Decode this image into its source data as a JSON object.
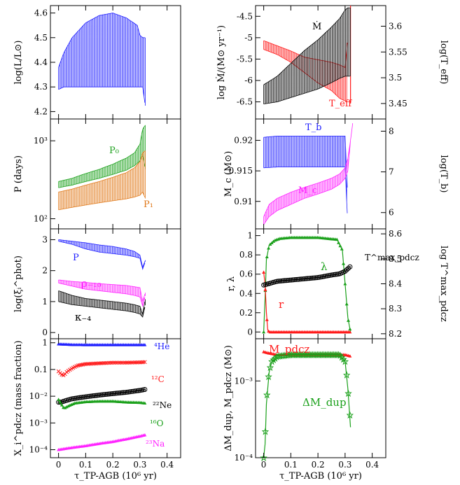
{
  "figure": {
    "shared_xlabel": "τ_TP-AGB (10⁶ yr)",
    "x_ticks": [
      "0",
      "0.1",
      "0.2",
      "0.3",
      "0.4"
    ],
    "colors": {
      "blue": "#2020ff",
      "red": "#ff1a1a",
      "green": "#1aa01a",
      "magenta": "#ff22ff",
      "orange": "#e07818",
      "black": "#000000"
    }
  },
  "chart_data": [
    {
      "id": "luminosity",
      "type": "line",
      "ylabel": "log(L/L⊙)",
      "ylim": [
        4.17,
        4.63
      ],
      "yticks": [
        "4.2",
        "4.3",
        "4.4",
        "4.5",
        "4.6"
      ],
      "series": [
        {
          "values": {
            "x": [
              0.0,
              0.02,
              0.05,
              0.1,
              0.15,
              0.2,
              0.25,
              0.29,
              0.3,
              0.31,
              0.32
            ],
            "y_top": [
              4.38,
              4.44,
              4.5,
              4.56,
              4.59,
              4.6,
              4.58,
              4.55,
              4.51,
              4.5,
              4.5
            ],
            "y_bottom": [
              4.29,
              4.3,
              4.3,
              4.3,
              4.3,
              4.3,
              4.3,
              4.3,
              4.3,
              4.3,
              4.22
            ]
          }
        }
      ]
    },
    {
      "id": "mass-loss",
      "type": "line",
      "ylabel": "log Ṁ/(M⊙ yr⁻¹)",
      "y2label": "log(T_eff)",
      "ylim": [
        -6.9,
        -4.25
      ],
      "y2lim": [
        3.42,
        3.64
      ],
      "yticks": [
        "-6.5",
        "-6",
        "-5.5",
        "-5",
        "-4.5"
      ],
      "y2ticks": [
        "3.45",
        "3.5",
        "3.55",
        "3.6"
      ],
      "annotations": [
        "Ṁ",
        "T_eff"
      ],
      "series": [
        {
          "name": "Ṁ",
          "values": {
            "x": [
              0.0,
              0.05,
              0.1,
              0.15,
              0.2,
              0.25,
              0.28,
              0.3,
              0.31,
              0.32
            ],
            "y_top": [
              -6.1,
              -5.9,
              -5.6,
              -5.3,
              -5.05,
              -4.75,
              -4.55,
              -4.35,
              -4.3,
              -4.3
            ],
            "y_bottom": [
              -6.55,
              -6.5,
              -6.4,
              -6.3,
              -6.2,
              -6.05,
              -5.95,
              -5.9,
              -5.9,
              -5.9
            ]
          }
        },
        {
          "name": "T_eff",
          "values": {
            "x": [
              0.0,
              0.05,
              0.1,
              0.15,
              0.2,
              0.25,
              0.28,
              0.3,
              0.32
            ],
            "y_top": [
              3.572,
              3.562,
              3.552,
              3.54,
              3.535,
              3.53,
              3.525,
              3.52,
              3.64
            ],
            "y_bottom": [
              3.555,
              3.545,
              3.53,
              3.51,
              3.49,
              3.475,
              3.46,
              3.455,
              3.45
            ]
          }
        }
      ]
    },
    {
      "id": "period",
      "type": "line",
      "ylabel": "P (days)",
      "ylim_log10": [
        1.87,
        3.28
      ],
      "yticks": [
        "10²",
        "10³"
      ],
      "series": [
        {
          "name": "P₀",
          "values": {
            "x": [
              0.0,
              0.05,
              0.1,
              0.15,
              0.2,
              0.25,
              0.28,
              0.3,
              0.31,
              0.32
            ],
            "y_top": [
              300,
              330,
              380,
              430,
              500,
              600,
              700,
              900,
              1400,
              1600
            ],
            "y_bottom": [
              250,
              270,
              300,
              330,
              370,
              420,
              480,
              550,
              650,
              420
            ]
          }
        },
        {
          "name": "P₁",
          "values": {
            "x": [
              0.0,
              0.05,
              0.1,
              0.15,
              0.2,
              0.25,
              0.28,
              0.3,
              0.31,
              0.32
            ],
            "y_top": [
              220,
              240,
              270,
              300,
              340,
              390,
              450,
              540,
              700,
              750
            ],
            "y_bottom": [
              130,
              140,
              150,
              160,
              170,
              180,
              190,
              200,
              220,
              180
            ]
          }
        }
      ]
    },
    {
      "id": "core-mass",
      "type": "line",
      "ylabel": "M_c (M⊙)",
      "y2label": "log(T_b)",
      "ylim": [
        0.9055,
        0.9235
      ],
      "y2lim": [
        5.6,
        8.3
      ],
      "yticks": [
        "0.91",
        "0.915",
        "0.92"
      ],
      "y2ticks": [
        "6",
        "7",
        "8"
      ],
      "series": [
        {
          "name": "T_b",
          "values": {
            "x": [
              0.0,
              0.05,
              0.1,
              0.15,
              0.2,
              0.25,
              0.28,
              0.3,
              0.31,
              0.32
            ],
            "y_top": [
              7.85,
              7.88,
              7.88,
              7.88,
              7.88,
              7.88,
              7.88,
              7.88,
              6.3,
              5.6
            ],
            "y_bottom": [
              7.1,
              7.12,
              7.12,
              7.12,
              7.12,
              7.12,
              7.12,
              7.12,
              5.7,
              5.6
            ]
          }
        },
        {
          "name": "M_c",
          "values": {
            "x": [
              0.0,
              0.02,
              0.05,
              0.1,
              0.15,
              0.2,
              0.25,
              0.28,
              0.3,
              0.31,
              0.32,
              0.33
            ],
            "y_top": [
              0.9075,
              0.9095,
              0.9105,
              0.9115,
              0.9123,
              0.913,
              0.9138,
              0.9145,
              0.9155,
              0.917,
              0.92,
              0.9235
            ],
            "y_bottom": [
              0.9062,
              0.9075,
              0.9085,
              0.9095,
              0.9105,
              0.9112,
              0.912,
              0.9128,
              0.9138,
              0.915,
              0.92,
              0.9235
            ]
          }
        }
      ]
    },
    {
      "id": "opacity-derivatives",
      "type": "line",
      "ylabel": "log(ξᵢ^phot)",
      "ylim": [
        -0.2,
        3.35
      ],
      "yticks": [
        "0",
        "1",
        "2",
        "3"
      ],
      "series": [
        {
          "name": "P",
          "values": {
            "x": [
              0.0,
              0.05,
              0.1,
              0.15,
              0.2,
              0.25,
              0.28,
              0.3,
              0.31,
              0.32
            ],
            "y_top": [
              3.0,
              2.95,
              2.9,
              2.83,
              2.78,
              2.7,
              2.62,
              2.5,
              2.1,
              2.35
            ],
            "y_bottom": [
              2.95,
              2.85,
              2.7,
              2.6,
              2.55,
              2.5,
              2.45,
              2.4,
              2.05,
              2.3
            ]
          }
        },
        {
          "name": "ρ₋₁₀",
          "values": {
            "x": [
              0.0,
              0.05,
              0.1,
              0.15,
              0.2,
              0.25,
              0.28,
              0.3,
              0.31,
              0.32
            ],
            "y_top": [
              1.7,
              1.65,
              1.62,
              1.58,
              1.55,
              1.52,
              1.48,
              1.45,
              1.0,
              1.3
            ],
            "y_bottom": [
              1.6,
              1.5,
              1.4,
              1.35,
              1.3,
              1.25,
              1.2,
              1.15,
              0.85,
              1.2
            ]
          }
        },
        {
          "name": "κ₋₄",
          "values": {
            "x": [
              0.0,
              0.05,
              0.1,
              0.15,
              0.2,
              0.25,
              0.28,
              0.3,
              0.31,
              0.32
            ],
            "y_top": [
              1.35,
              1.2,
              1.1,
              1.05,
              1.0,
              0.95,
              0.9,
              0.85,
              0.6,
              1.1
            ],
            "y_bottom": [
              1.0,
              0.9,
              0.85,
              0.8,
              0.75,
              0.7,
              0.65,
              0.6,
              0.5,
              0.9
            ]
          }
        }
      ]
    },
    {
      "id": "dredge-up-efficiency",
      "type": "line",
      "ylabel": "r, λ",
      "y2label": "log T^max_pdcz",
      "ylim": [
        -0.07,
        1.07
      ],
      "y2lim": [
        8.18,
        8.62
      ],
      "yticks": [
        "0",
        "0.2",
        "0.4",
        "0.6",
        "0.8",
        "1"
      ],
      "y2ticks": [
        "8.2",
        "8.3",
        "8.4",
        "8.5",
        "8.6"
      ],
      "annotations": [
        "λ",
        "r",
        "T^max_pdcz"
      ],
      "series": [
        {
          "name": "λ",
          "values": {
            "x": [
              0.0,
              0.005,
              0.01,
              0.02,
              0.04,
              0.06,
              0.1,
              0.2,
              0.27,
              0.29,
              0.3,
              0.31,
              0.32
            ],
            "y": [
              0.0,
              0.35,
              0.75,
              0.9,
              0.95,
              0.97,
              0.98,
              0.98,
              0.96,
              0.85,
              0.5,
              0.15,
              0.0
            ]
          }
        },
        {
          "name": "r",
          "values": {
            "x": [
              0.0,
              0.005,
              0.01,
              0.015,
              0.02,
              0.05,
              0.1,
              0.2,
              0.3,
              0.32
            ],
            "y": [
              0.62,
              0.5,
              0.2,
              0.02,
              0.0,
              0.0,
              0.0,
              0.0,
              0.0,
              0.0
            ]
          }
        },
        {
          "name": "T^max_pdcz",
          "values": {
            "x": [
              0.0,
              0.05,
              0.1,
              0.15,
              0.2,
              0.25,
              0.28,
              0.3,
              0.32
            ],
            "y": [
              8.395,
              8.41,
              8.415,
              8.42,
              8.425,
              8.435,
              8.44,
              8.45,
              8.47
            ]
          }
        }
      ]
    },
    {
      "id": "surface-abundances",
      "type": "line",
      "ylabel": "X_i^pdcz (mass fraction)",
      "ylim_log10": [
        -4.3,
        0.15
      ],
      "yticks": [
        "10⁻⁴",
        "10⁻³",
        "10⁻²",
        "0.1",
        "1"
      ],
      "series": [
        {
          "name": "⁴He",
          "values": {
            "x": [
              0.0,
              0.05,
              0.1,
              0.15,
              0.2,
              0.25,
              0.3,
              0.32
            ],
            "y": [
              0.9,
              0.85,
              0.84,
              0.84,
              0.84,
              0.84,
              0.84,
              0.84
            ]
          }
        },
        {
          "name": "¹²C",
          "values": {
            "x": [
              0.0,
              0.01,
              0.02,
              0.03,
              0.05,
              0.07,
              0.1,
              0.15,
              0.2,
              0.25,
              0.3,
              0.32
            ],
            "y": [
              0.085,
              0.065,
              0.06,
              0.08,
              0.11,
              0.14,
              0.16,
              0.17,
              0.18,
              0.18,
              0.185,
              0.19
            ]
          }
        },
        {
          "name": "²²Ne",
          "values": {
            "x": [
              0.0,
              0.01,
              0.02,
              0.05,
              0.1,
              0.15,
              0.2,
              0.25,
              0.3,
              0.32
            ],
            "y": [
              0.006,
              0.006,
              0.0065,
              0.008,
              0.0095,
              0.011,
              0.0125,
              0.014,
              0.0165,
              0.018
            ]
          }
        },
        {
          "name": "¹⁶O",
          "values": {
            "x": [
              0.0,
              0.01,
              0.02,
              0.04,
              0.06,
              0.1,
              0.15,
              0.2,
              0.25,
              0.3,
              0.32
            ],
            "y": [
              0.0075,
              0.005,
              0.0035,
              0.0045,
              0.0055,
              0.0062,
              0.0065,
              0.0065,
              0.006,
              0.0058,
              0.0055
            ]
          }
        },
        {
          "name": "²³Na",
          "values": {
            "x": [
              0.0,
              0.05,
              0.1,
              0.15,
              0.2,
              0.25,
              0.3,
              0.32
            ],
            "y": [
              0.0001,
              0.00012,
              0.00014,
              0.00017,
              0.0002,
              0.00025,
              0.00032,
              0.00036
            ]
          }
        }
      ]
    },
    {
      "id": "pdcz-mass",
      "type": "line",
      "ylabel": "ΔM_dup, M_pdcz (M⊙)",
      "ylim_log10": [
        -4.0,
        -2.45
      ],
      "yticks": [
        "10⁻⁴",
        "10⁻³"
      ],
      "series": [
        {
          "name": "M_pdcz",
          "values": {
            "x": [
              0.0,
              0.02,
              0.05,
              0.1,
              0.15,
              0.2,
              0.25,
              0.3,
              0.32
            ],
            "y": [
              0.0024,
              0.0023,
              0.0022,
              0.0022,
              0.0022,
              0.0022,
              0.0022,
              0.0022,
              0.0021
            ]
          }
        },
        {
          "name": "ΔM_dup",
          "values": {
            "x": [
              0.0,
              0.005,
              0.01,
              0.02,
              0.03,
              0.05,
              0.1,
              0.2,
              0.28,
              0.3,
              0.31,
              0.32
            ],
            "y": [
              0.0001,
              0.00015,
              0.0005,
              0.0013,
              0.0018,
              0.0021,
              0.0022,
              0.0022,
              0.0022,
              0.0018,
              0.0008,
              0.00025
            ]
          }
        }
      ]
    }
  ]
}
